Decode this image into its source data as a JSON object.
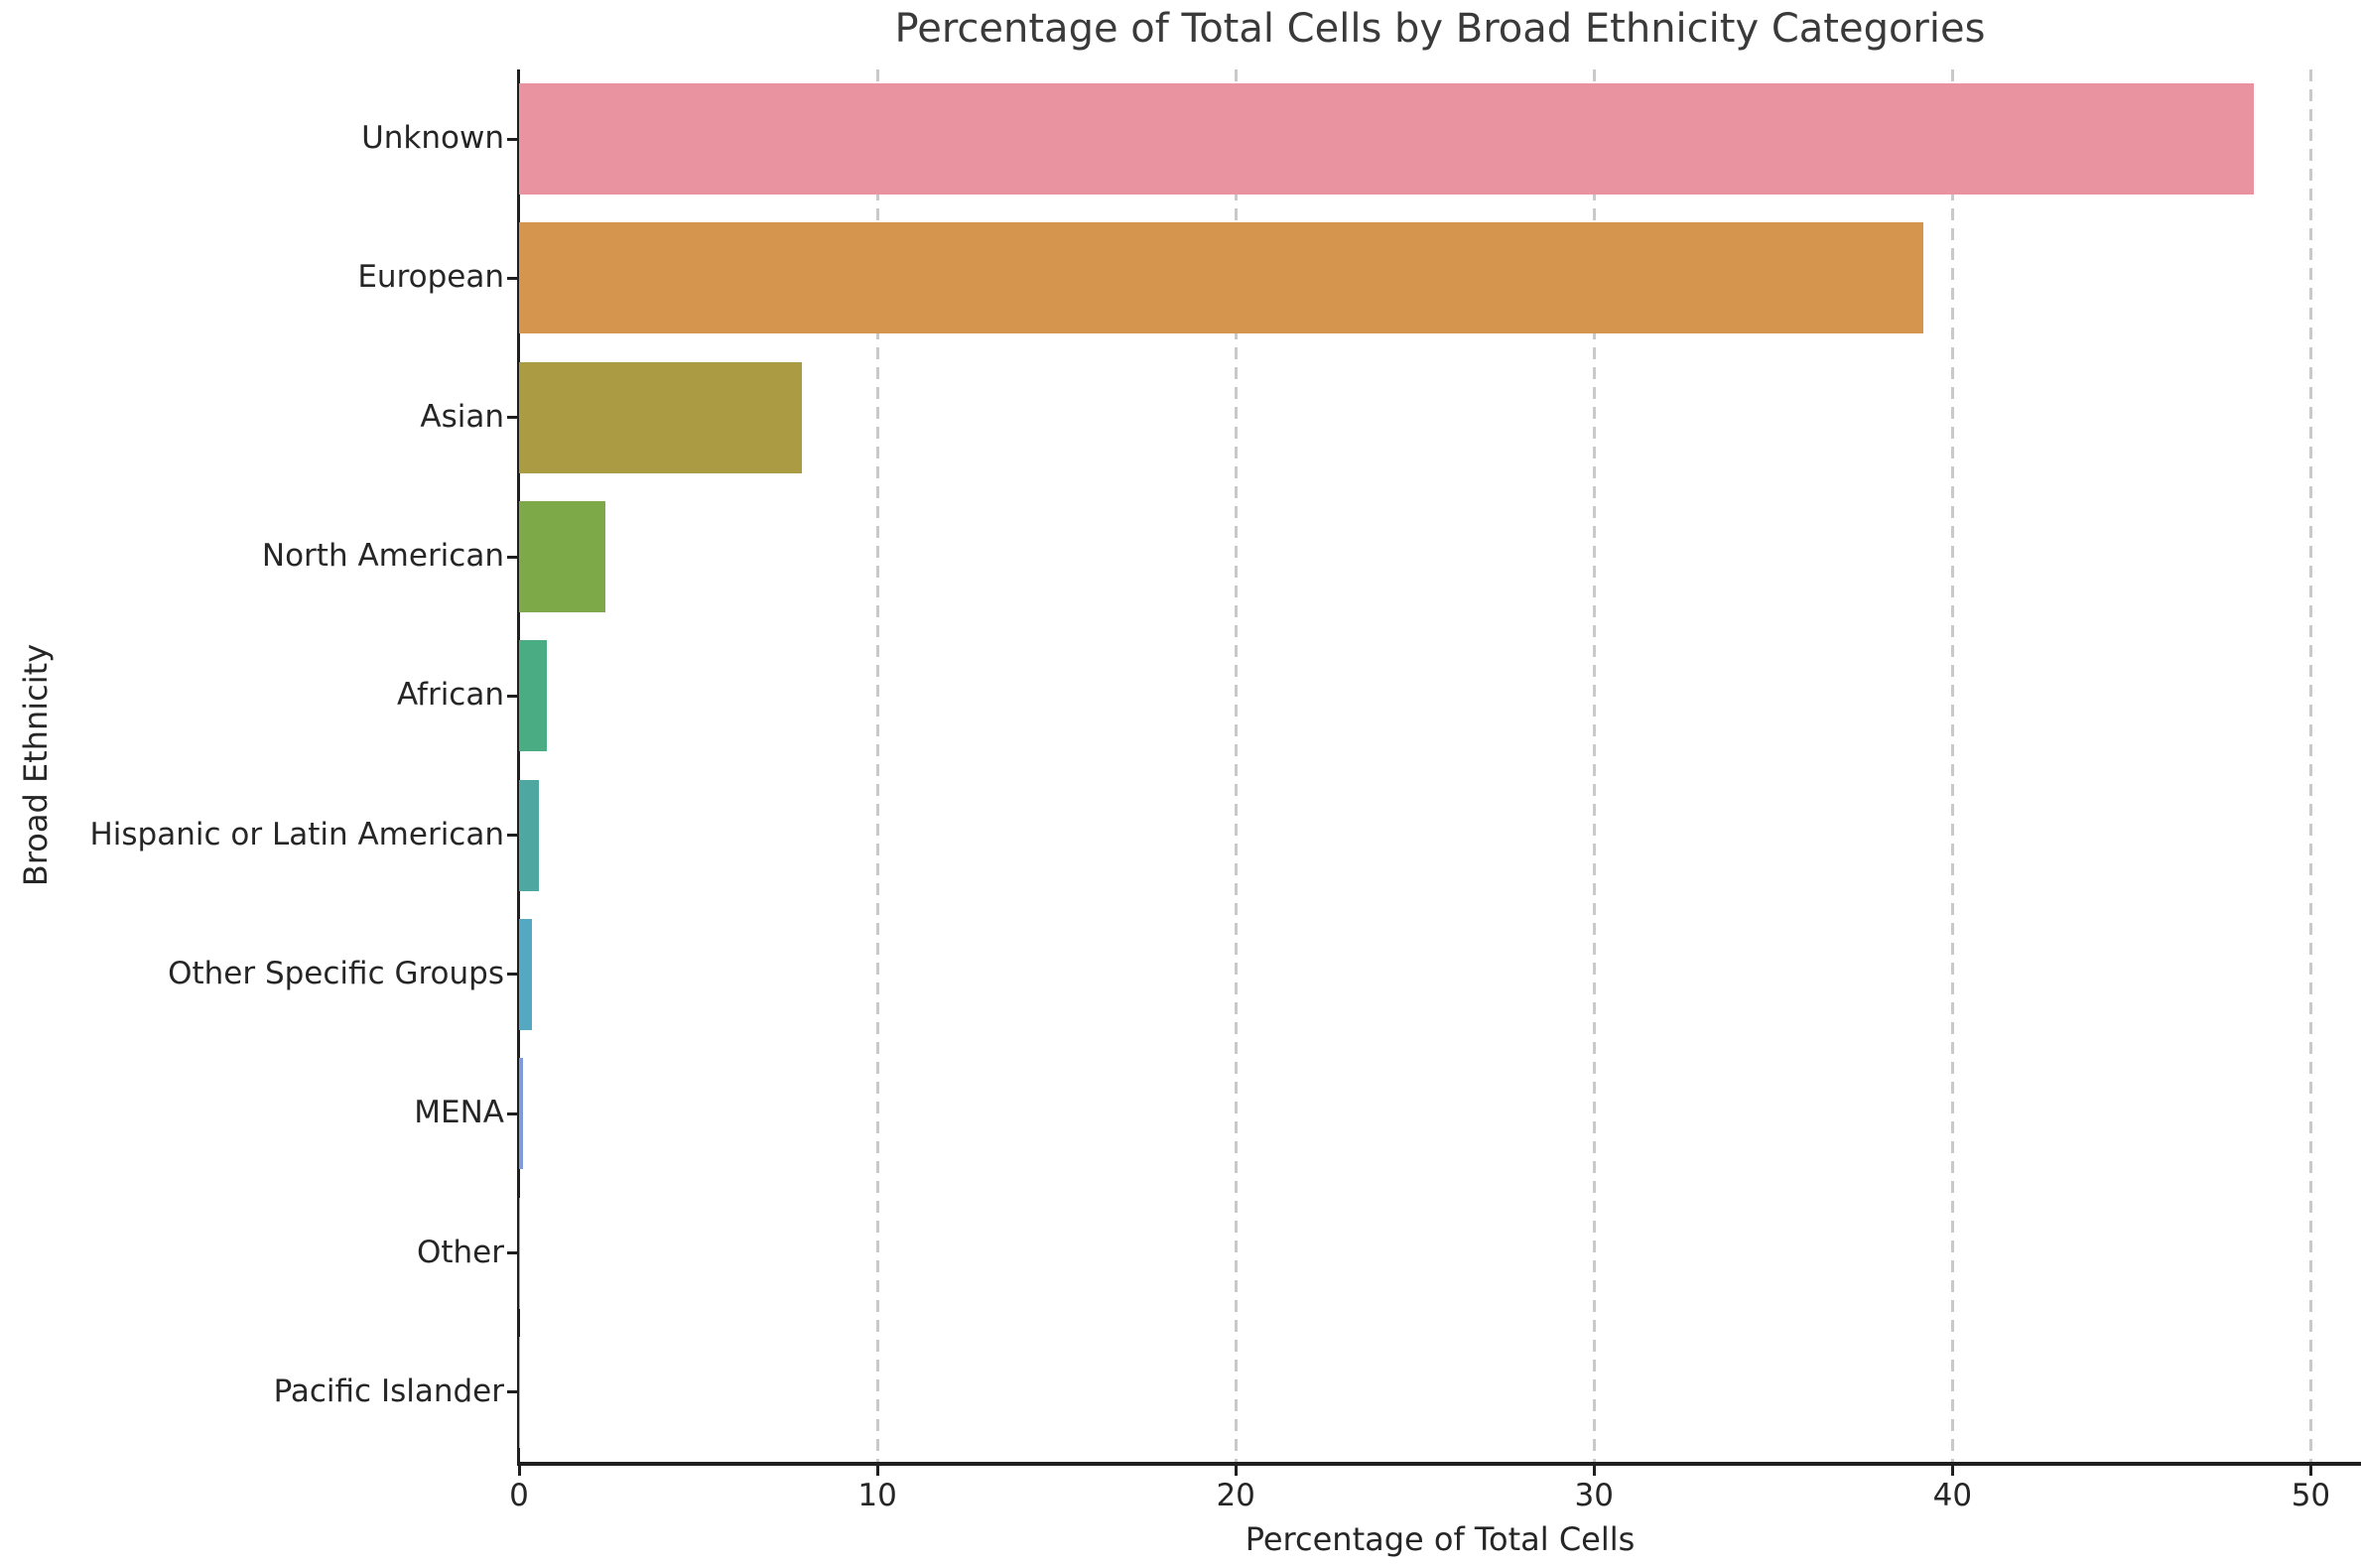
{
  "chart_data": {
    "type": "bar",
    "orientation": "horizontal",
    "title": "Percentage of Total Cells by Broad Ethnicity Categories",
    "xlabel": "Percentage of Total Cells",
    "ylabel": "Broad Ethnicity",
    "categories": [
      "Unknown",
      "European",
      "Asian",
      "North American",
      "African",
      "Hispanic or Latin American",
      "Other Specific Groups",
      "MENA",
      "Other",
      "Pacific Islander"
    ],
    "values": [
      48.4,
      39.2,
      7.9,
      2.4,
      0.78,
      0.55,
      0.36,
      0.12,
      0.03,
      0.01
    ],
    "bar_colors": [
      "#e8939f",
      "#d6954f",
      "#ab9c43",
      "#7ea949",
      "#4aac82",
      "#4ea8a1",
      "#55a8c2",
      "#7f9ad9",
      "#c489e0",
      "#e98cc4"
    ],
    "xlim": [
      0,
      51.4
    ],
    "xticks": [
      0,
      10,
      20,
      30,
      40,
      50
    ],
    "grid": "vertical-dashed",
    "gridline_color": "#c9c9c9",
    "legend": "none",
    "background": "#ffffff",
    "spine_color": "#1f1f1f",
    "text_color": "#262626",
    "title_color": "#3a3a3a"
  }
}
